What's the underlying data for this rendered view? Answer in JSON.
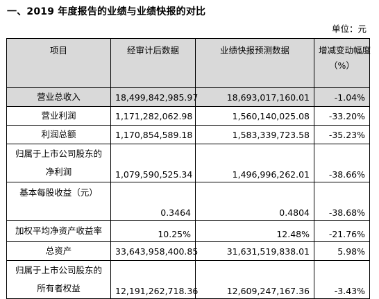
{
  "heading": "一、2019 年度报告的业绩与业绩快报的对比",
  "unit": "单位：元",
  "table": {
    "headers": {
      "item": "项目",
      "audited": "经审计后数据",
      "flash": "业绩快报预测数据",
      "change_line1": "增减变动幅度",
      "change_line2": "（%）"
    },
    "rows": [
      {
        "item": "营业总收入",
        "audited": "18,499,842,985.97",
        "flash": "18,693,017,160.01",
        "change": "-1.04%"
      },
      {
        "item": "营业利润",
        "audited": "1,171,282,062.98",
        "flash": "1,560,140,025.08",
        "change": "-33.20%"
      },
      {
        "item": "利润总额",
        "audited": "1,170,854,589.18",
        "flash": "1,583,339,723.58",
        "change": "-35.23%"
      },
      {
        "item_line1": "归属于上市公司股东的",
        "item_line2": "净利润",
        "audited": "1,079,590,525.34",
        "flash": "1,496,996,262.01",
        "change": "-38.66%"
      },
      {
        "item": "基本每股收益（元）",
        "audited": "0.3464",
        "flash": "0.4804",
        "change": "-38.68%"
      },
      {
        "item": "加权平均净资产收益率",
        "audited": "10.25%",
        "flash": "12.48%",
        "change": "-21.76%"
      },
      {
        "item": "总资产",
        "audited": "33,643,958,400.85",
        "flash": "31,631,519,838.01",
        "change": "5.98%"
      },
      {
        "item_line1": "归属于上市公司股东的",
        "item_line2": "所有者权益",
        "audited": "12,191,262,718.36",
        "flash": "12,609,247,167.36",
        "change": "-3.43%"
      }
    ]
  }
}
